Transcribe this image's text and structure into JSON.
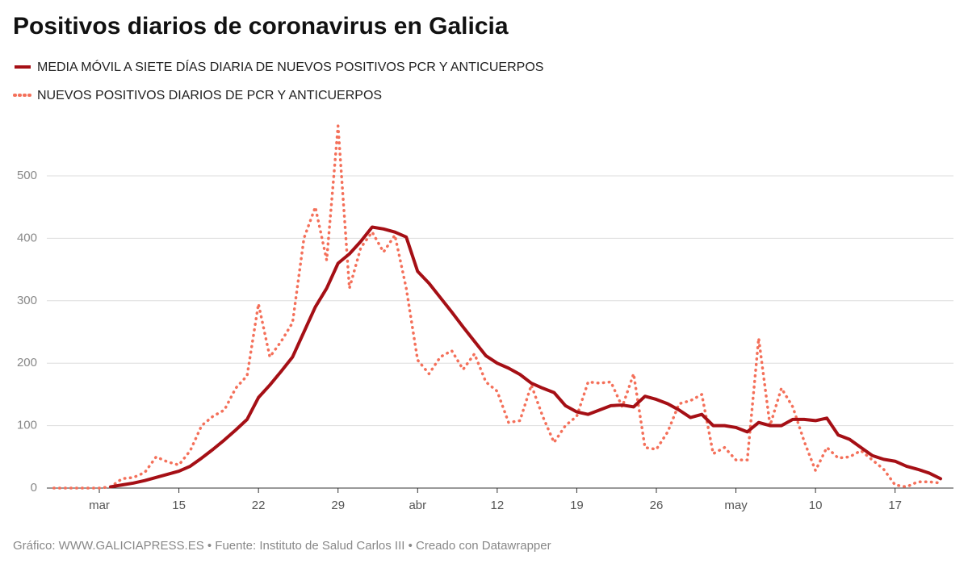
{
  "chart_data": {
    "type": "line",
    "title": "Positivos diarios de coronavirus en Galicia",
    "source": "Gráfico: WWW.GALICIAPRESS.ES • Fuente: Instituto de Salud Carlos III • Creado con Datawrapper",
    "categories": [
      null,
      null,
      null,
      null,
      "mar",
      null,
      null,
      null,
      null,
      null,
      null,
      "15",
      null,
      null,
      null,
      null,
      null,
      null,
      "22",
      null,
      null,
      null,
      null,
      null,
      null,
      "29",
      null,
      null,
      null,
      null,
      null,
      null,
      "abr",
      null,
      null,
      null,
      null,
      null,
      null,
      "12",
      null,
      null,
      null,
      null,
      null,
      null,
      "19",
      null,
      null,
      null,
      null,
      null,
      null,
      "26",
      null,
      null,
      null,
      null,
      null,
      null,
      "may",
      null,
      null,
      null,
      null,
      null,
      null,
      "10",
      null,
      null,
      null,
      null,
      null,
      null,
      "17",
      null,
      null,
      null,
      null
    ],
    "series": [
      {
        "name": "MEDIA MÓVIL A SIETE DÍAS DIARIA DE NUEVOS POSITIVOS PCR Y ANTICUERPOS",
        "color": "#a50f15",
        "style": "solid",
        "values": [
          null,
          null,
          null,
          null,
          null,
          2,
          5,
          8,
          12,
          17,
          22,
          27,
          35,
          48,
          62,
          77,
          93,
          110,
          145,
          165,
          187,
          210,
          250,
          290,
          320,
          360,
          375,
          395,
          418,
          415,
          410,
          402,
          347,
          328,
          305,
          282,
          258,
          235,
          212,
          200,
          192,
          182,
          168,
          160,
          153,
          132,
          122,
          118,
          125,
          132,
          133,
          130,
          147,
          142,
          135,
          125,
          113,
          118,
          100,
          100,
          97,
          90,
          105,
          100,
          100,
          110,
          110,
          108,
          112,
          85,
          78,
          65,
          52,
          46,
          43,
          35,
          30,
          24,
          15
        ]
      },
      {
        "name": "NUEVOS POSITIVOS DIARIOS DE PCR Y ANTICUERPOS",
        "color": "#f4705a",
        "style": "dotted",
        "values": [
          0,
          0,
          0,
          0,
          0,
          2,
          15,
          17,
          25,
          50,
          42,
          37,
          60,
          100,
          115,
          125,
          160,
          180,
          295,
          210,
          235,
          265,
          400,
          450,
          365,
          580,
          320,
          385,
          410,
          378,
          405,
          320,
          205,
          183,
          210,
          220,
          190,
          215,
          170,
          155,
          105,
          108,
          165,
          115,
          73,
          100,
          115,
          170,
          168,
          170,
          130,
          183,
          65,
          62,
          90,
          135,
          140,
          150,
          55,
          65,
          45,
          45,
          240,
          100,
          160,
          130,
          75,
          28,
          65,
          48,
          50,
          60,
          45,
          30,
          5,
          2,
          10,
          10,
          8
        ]
      }
    ],
    "ylim": [
      0,
      600
    ],
    "yticks": [
      0,
      100,
      200,
      300,
      400,
      500
    ],
    "grid": true
  }
}
